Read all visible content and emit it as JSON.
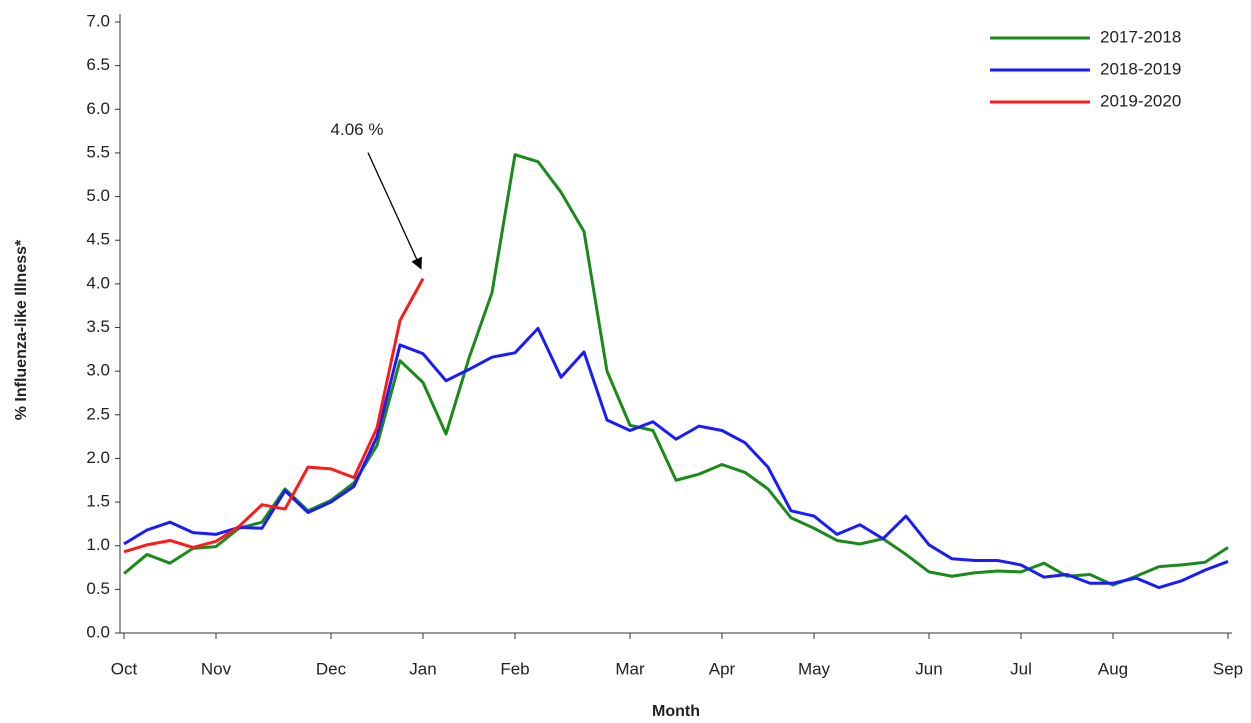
{
  "chart_data": {
    "type": "line",
    "x_label": "Month",
    "y_label": "% Influenza-like Illness*",
    "categories": [
      "Oct",
      null,
      null,
      null,
      "Nov",
      null,
      null,
      null,
      null,
      "Dec",
      null,
      null,
      null,
      "Jan",
      null,
      null,
      null,
      "Feb",
      null,
      null,
      null,
      null,
      "Mar",
      null,
      null,
      null,
      "Apr",
      null,
      null,
      null,
      "May",
      null,
      null,
      null,
      null,
      "Jun",
      null,
      null,
      null,
      "Jul",
      null,
      null,
      null,
      "Aug",
      null,
      null,
      null,
      null,
      "Sep"
    ],
    "series": [
      {
        "name": "2017-2018",
        "color": "#1a8a1a",
        "values": [
          0.68,
          0.9,
          0.8,
          0.97,
          0.99,
          1.2,
          1.27,
          1.65,
          1.4,
          1.52,
          1.72,
          2.15,
          3.12,
          2.87,
          2.28,
          3.15,
          3.9,
          5.48,
          5.4,
          5.05,
          4.6,
          3.0,
          2.38,
          2.32,
          1.75,
          1.82,
          1.93,
          1.84,
          1.65,
          1.32,
          1.2,
          1.06,
          1.02,
          1.08,
          0.9,
          0.7,
          0.65,
          0.69,
          0.71,
          0.7,
          0.8,
          0.65,
          0.67,
          0.55,
          0.65,
          0.76,
          0.78,
          0.81,
          0.98
        ]
      },
      {
        "name": "2018-2019",
        "color": "#1a1aff",
        "values": [
          1.02,
          1.18,
          1.27,
          1.15,
          1.13,
          1.21,
          1.2,
          1.63,
          1.38,
          1.5,
          1.68,
          2.25,
          3.3,
          3.2,
          2.89,
          3.02,
          3.16,
          3.21,
          3.49,
          2.93,
          3.22,
          2.44,
          2.32,
          2.42,
          2.22,
          2.37,
          2.32,
          2.18,
          1.9,
          1.4,
          1.34,
          1.13,
          1.24,
          1.08,
          1.34,
          1.01,
          0.85,
          0.83,
          0.83,
          0.78,
          0.64,
          0.67,
          0.57,
          0.57,
          0.63,
          0.52,
          0.6,
          0.72,
          0.82
        ]
      },
      {
        "name": "2019-2020",
        "color": "#ff1a1a",
        "values": [
          0.93,
          1.01,
          1.06,
          0.98,
          1.05,
          1.22,
          1.47,
          1.42,
          1.9,
          1.88,
          1.78,
          2.35,
          3.58,
          4.06,
          null,
          null,
          null,
          null,
          null,
          null,
          null,
          null,
          null,
          null,
          null,
          null,
          null,
          null,
          null,
          null,
          null,
          null,
          null,
          null,
          null,
          null,
          null,
          null,
          null,
          null,
          null,
          null,
          null,
          null,
          null,
          null,
          null,
          null,
          null
        ]
      }
    ],
    "annotation": {
      "text": "4.06 %",
      "series": 2,
      "index": 13
    },
    "ylim": [
      0,
      7
    ],
    "yticks": [
      {
        "value": 0,
        "label": "0.0"
      },
      {
        "value": 0.5,
        "label": "0.5"
      },
      {
        "value": 1,
        "label": "1.0"
      },
      {
        "value": 1.5,
        "label": "1.5"
      },
      {
        "value": 2,
        "label": "2.0"
      },
      {
        "value": 2.5,
        "label": "2.5"
      },
      {
        "value": 3,
        "label": "3.0"
      },
      {
        "value": 3.5,
        "label": "3.5"
      },
      {
        "value": 4,
        "label": "4.0"
      },
      {
        "value": 4.5,
        "label": "4.5"
      },
      {
        "value": 5,
        "label": "5.0"
      },
      {
        "value": 5.5,
        "label": "5.5"
      },
      {
        "value": 6,
        "label": "6.0"
      },
      {
        "value": 6.5,
        "label": "6.5"
      },
      {
        "value": 7,
        "label": "7.0"
      }
    ],
    "legend": "top-right",
    "grid": false
  }
}
